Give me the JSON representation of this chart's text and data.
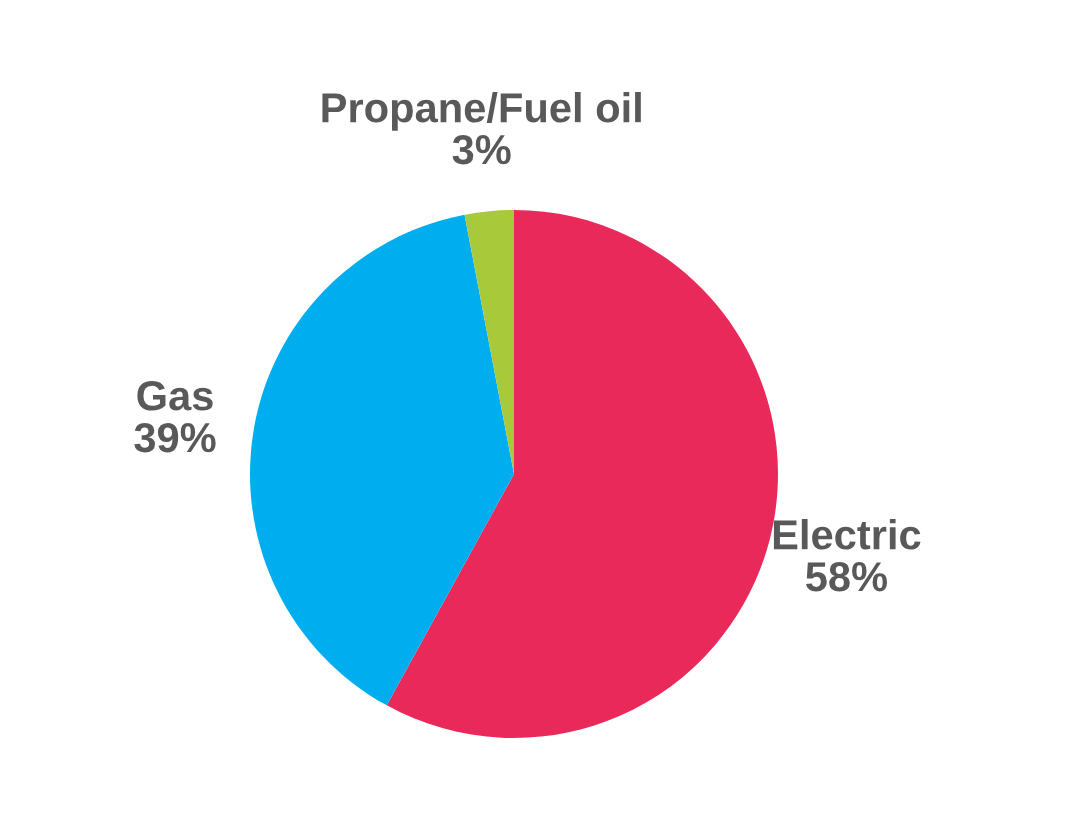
{
  "chart_data": {
    "type": "pie",
    "categories": [
      "Electric",
      "Gas",
      "Propane/Fuel oil"
    ],
    "values": [
      58,
      39,
      3
    ],
    "value_labels": [
      "58%",
      "39%",
      "3%"
    ],
    "colors": [
      "#e8295a",
      "#00aeef",
      "#a8c93a"
    ],
    "legend": false
  }
}
